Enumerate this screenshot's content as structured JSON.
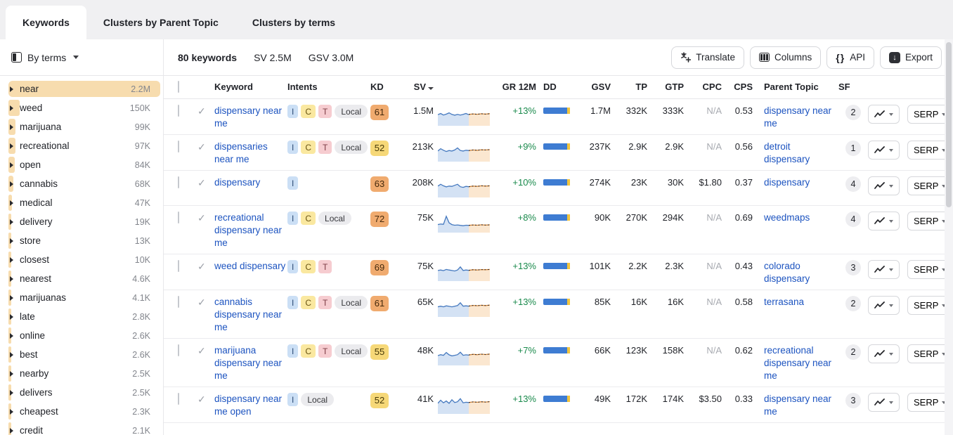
{
  "tabs": [
    {
      "label": "Keywords",
      "active": true
    },
    {
      "label": "Clusters by Parent Topic",
      "active": false
    },
    {
      "label": "Clusters by terms",
      "active": false
    }
  ],
  "sidebar": {
    "filter_label": "By terms",
    "max_value": 2200000,
    "items": [
      {
        "term": "near",
        "count": "2.2M",
        "n": 2200000,
        "selected": true
      },
      {
        "term": "weed",
        "count": "150K",
        "n": 150000
      },
      {
        "term": "marijuana",
        "count": "99K",
        "n": 99000
      },
      {
        "term": "recreational",
        "count": "97K",
        "n": 97000
      },
      {
        "term": "open",
        "count": "84K",
        "n": 84000
      },
      {
        "term": "cannabis",
        "count": "68K",
        "n": 68000
      },
      {
        "term": "medical",
        "count": "47K",
        "n": 47000
      },
      {
        "term": "delivery",
        "count": "19K",
        "n": 19000
      },
      {
        "term": "store",
        "count": "13K",
        "n": 13000
      },
      {
        "term": "closest",
        "count": "10K",
        "n": 10000
      },
      {
        "term": "nearest",
        "count": "4.6K",
        "n": 4600
      },
      {
        "term": "marijuanas",
        "count": "4.1K",
        "n": 4100
      },
      {
        "term": "late",
        "count": "2.8K",
        "n": 2800
      },
      {
        "term": "online",
        "count": "2.6K",
        "n": 2600
      },
      {
        "term": "best",
        "count": "2.6K",
        "n": 2600
      },
      {
        "term": "nearby",
        "count": "2.5K",
        "n": 2500
      },
      {
        "term": "delivers",
        "count": "2.5K",
        "n": 2500
      },
      {
        "term": "cheapest",
        "count": "2.3K",
        "n": 2300
      },
      {
        "term": "credit",
        "count": "2.1K",
        "n": 2100
      }
    ]
  },
  "toolbar": {
    "summary": {
      "keywords": "80 keywords",
      "sv": "SV 2.5M",
      "gsv": "GSV 3.0M"
    },
    "translate_label": "Translate",
    "columns_label": "Columns",
    "api_label": "API",
    "export_label": "Export",
    "api_glyph": "{}",
    "export_glyph": "↓"
  },
  "table": {
    "headers": {
      "keyword": "Keyword",
      "intents": "Intents",
      "kd": "KD",
      "sv": "SV",
      "gr": "GR 12M",
      "dd": "DD",
      "gsv": "GSV",
      "tp": "TP",
      "gtp": "GTP",
      "cpc": "CPC",
      "cps": "CPS",
      "parent": "Parent Topic",
      "sf": "SF"
    },
    "serp_label": "SERP",
    "check_glyph": "✓",
    "rows": [
      {
        "keyword": "dispensary near me",
        "intents": [
          "I",
          "C",
          "T",
          "Local"
        ],
        "kd": 61,
        "kd_level": "orange",
        "sv": "1.5M",
        "gr": "+13%",
        "gsv": "1.7M",
        "tp": "332K",
        "gtp": "333K",
        "cpc": "N/A",
        "cps": "0.53",
        "parent": "dispensary near me",
        "sf": 2,
        "dd": [
          0.86,
          0.08
        ],
        "trend": {
          "history": [
            0.58,
            0.66,
            0.56,
            0.62,
            0.7,
            0.6,
            0.55,
            0.6,
            0.56,
            0.6,
            0.66,
            0.58
          ],
          "forecast": [
            0.6,
            0.63,
            0.61,
            0.64,
            0.62,
            0.65
          ]
        }
      },
      {
        "keyword": "dispensaries near me",
        "intents": [
          "I",
          "C",
          "T",
          "Local"
        ],
        "kd": 52,
        "kd_level": "yellow",
        "sv": "213K",
        "gr": "+9%",
        "gsv": "237K",
        "tp": "2.9K",
        "gtp": "2.9K",
        "cpc": "N/A",
        "cps": "0.56",
        "parent": "detroit dispensary",
        "sf": 1,
        "dd": [
          0.86,
          0.08
        ],
        "trend": {
          "history": [
            0.55,
            0.7,
            0.6,
            0.52,
            0.58,
            0.55,
            0.62,
            0.75,
            0.58,
            0.55,
            0.6,
            0.58
          ],
          "forecast": [
            0.58,
            0.62,
            0.6,
            0.63,
            0.62,
            0.64
          ]
        }
      },
      {
        "keyword": "dispensary",
        "intents": [
          "I"
        ],
        "kd": 63,
        "kd_level": "orange",
        "sv": "208K",
        "gr": "+10%",
        "gsv": "274K",
        "tp": "23K",
        "gtp": "30K",
        "cpc": "$1.80",
        "cps": "0.37",
        "parent": "dispensary",
        "sf": 4,
        "dd": [
          0.86,
          0.08
        ],
        "trend": {
          "history": [
            0.6,
            0.72,
            0.62,
            0.55,
            0.6,
            0.58,
            0.65,
            0.72,
            0.56,
            0.52,
            0.58,
            0.56
          ],
          "forecast": [
            0.56,
            0.6,
            0.58,
            0.62,
            0.6,
            0.62
          ]
        }
      },
      {
        "keyword": "recreational dispensary near me",
        "intents": [
          "I",
          "C",
          "Local"
        ],
        "kd": 72,
        "kd_level": "orange",
        "sv": "75K",
        "gr": "+8%",
        "gsv": "90K",
        "tp": "270K",
        "gtp": "294K",
        "cpc": "N/A",
        "cps": "0.69",
        "parent": "weedmaps",
        "sf": 4,
        "dd": [
          0.86,
          0.08
        ],
        "trend": {
          "history": [
            0.38,
            0.42,
            0.4,
            0.92,
            0.5,
            0.38,
            0.34,
            0.36,
            0.33,
            0.31,
            0.34,
            0.33
          ],
          "forecast": [
            0.33,
            0.36,
            0.34,
            0.37,
            0.35,
            0.37
          ]
        }
      },
      {
        "keyword": "weed dispensary",
        "intents": [
          "I",
          "C",
          "T"
        ],
        "kd": 69,
        "kd_level": "orange",
        "sv": "75K",
        "gr": "+13%",
        "gsv": "101K",
        "tp": "2.2K",
        "gtp": "2.3K",
        "cpc": "N/A",
        "cps": "0.43",
        "parent": "colorado dispensary",
        "sf": 3,
        "dd": [
          0.86,
          0.08
        ],
        "trend": {
          "history": [
            0.55,
            0.58,
            0.54,
            0.62,
            0.58,
            0.55,
            0.52,
            0.58,
            0.78,
            0.55,
            0.58,
            0.56
          ],
          "forecast": [
            0.56,
            0.6,
            0.58,
            0.61,
            0.6,
            0.62
          ]
        }
      },
      {
        "keyword": "cannabis dispensary near me",
        "intents": [
          "I",
          "C",
          "T",
          "Local"
        ],
        "kd": 61,
        "kd_level": "orange",
        "sv": "65K",
        "gr": "+13%",
        "gsv": "85K",
        "tp": "16K",
        "gtp": "16K",
        "cpc": "N/A",
        "cps": "0.58",
        "parent": "terrasana",
        "sf": 2,
        "dd": [
          0.86,
          0.08
        ],
        "trend": {
          "history": [
            0.52,
            0.56,
            0.52,
            0.58,
            0.55,
            0.52,
            0.56,
            0.6,
            0.78,
            0.56,
            0.58,
            0.56
          ],
          "forecast": [
            0.57,
            0.61,
            0.59,
            0.62,
            0.6,
            0.63
          ]
        }
      },
      {
        "keyword": "marijuana dispensary near me",
        "intents": [
          "I",
          "C",
          "T",
          "Local"
        ],
        "kd": 55,
        "kd_level": "yellow",
        "sv": "48K",
        "gr": "+7%",
        "gsv": "66K",
        "tp": "123K",
        "gtp": "158K",
        "cpc": "N/A",
        "cps": "0.62",
        "parent": "recreational dispensary near me",
        "sf": 2,
        "dd": [
          0.86,
          0.08
        ],
        "trend": {
          "history": [
            0.5,
            0.56,
            0.52,
            0.7,
            0.55,
            0.48,
            0.52,
            0.56,
            0.72,
            0.52,
            0.55,
            0.53
          ],
          "forecast": [
            0.54,
            0.58,
            0.56,
            0.59,
            0.57,
            0.6
          ]
        }
      },
      {
        "keyword": "dispensary near me open",
        "intents": [
          "I",
          "Local"
        ],
        "kd": 52,
        "kd_level": "yellow",
        "sv": "41K",
        "gr": "+13%",
        "gsv": "49K",
        "tp": "172K",
        "gtp": "174K",
        "cpc": "$3.50",
        "cps": "0.33",
        "parent": "dispensary near me",
        "sf": 3,
        "dd": [
          0.86,
          0.08
        ],
        "trend": {
          "history": [
            0.55,
            0.75,
            0.58,
            0.7,
            0.55,
            0.78,
            0.6,
            0.65,
            0.85,
            0.58,
            0.62,
            0.6
          ],
          "forecast": [
            0.6,
            0.64,
            0.62,
            0.65,
            0.63,
            0.66
          ]
        }
      }
    ]
  },
  "colors": {
    "accent_blue": "#1d54c0",
    "growth_green": "#1a8a4c",
    "kd_orange": "#f0ab6f",
    "kd_yellow": "#f6d878",
    "sidebar_bar": "#f7dcae",
    "dd_blue": "#3e7cd2",
    "dd_yellow": "#f2c53d"
  }
}
